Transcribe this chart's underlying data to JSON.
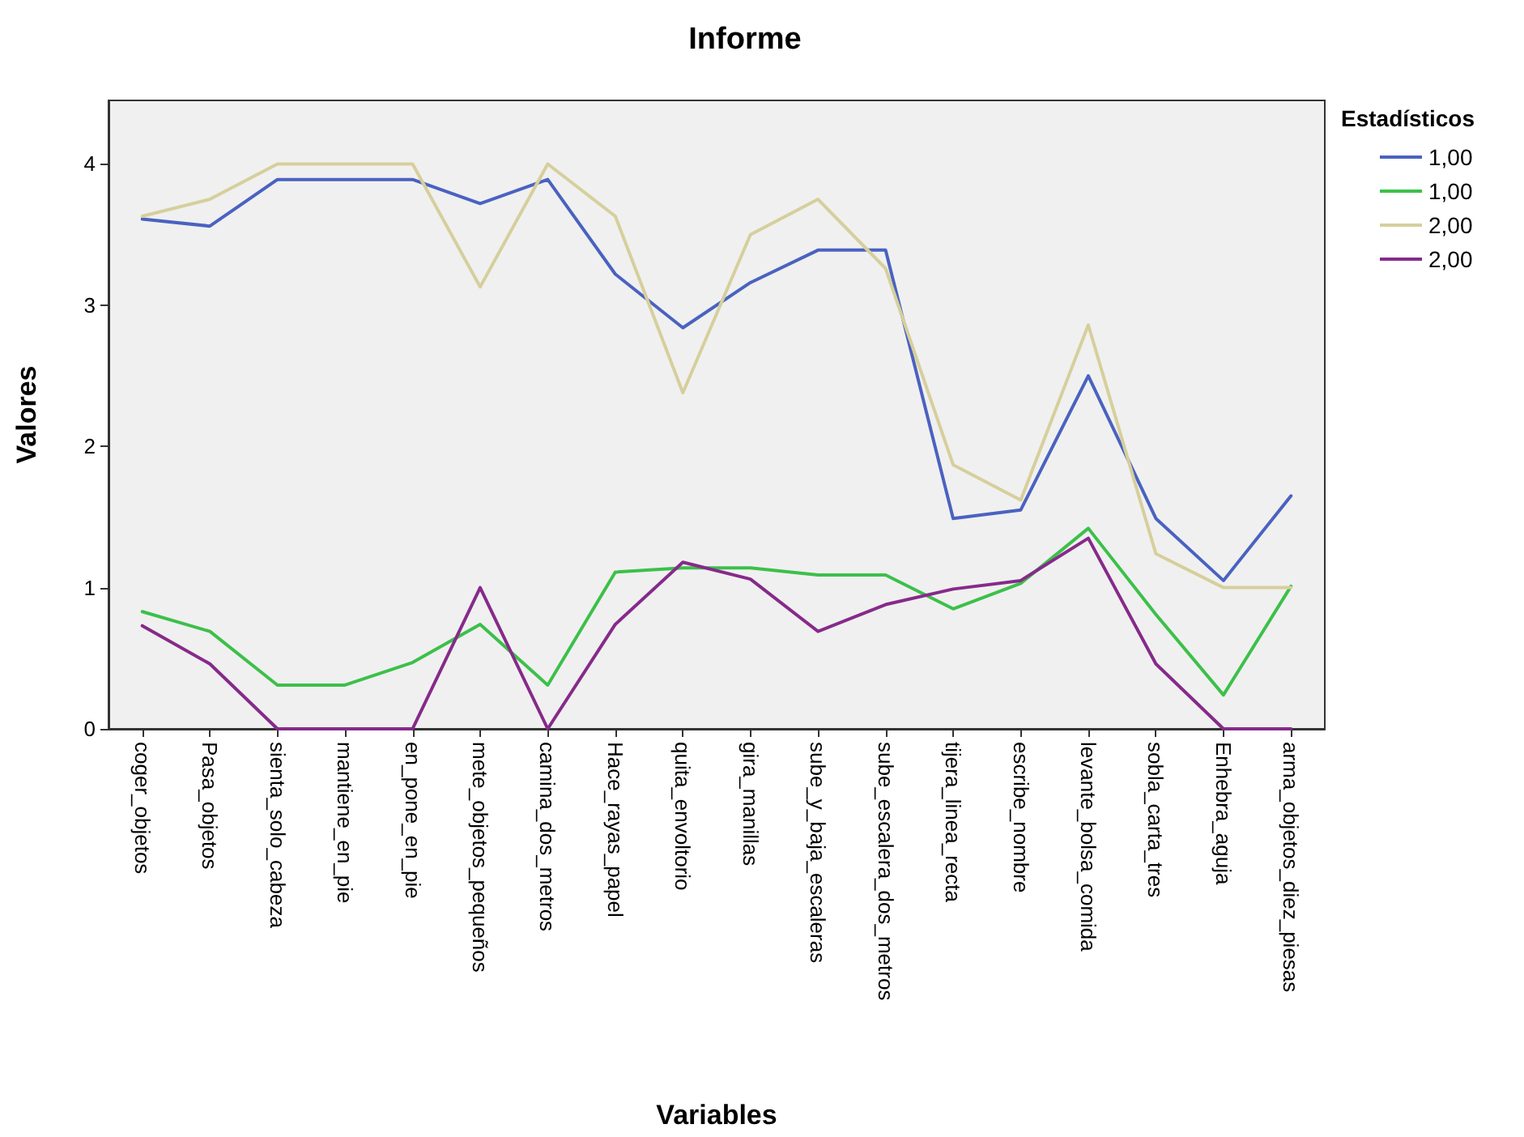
{
  "chart_data": {
    "type": "line",
    "title": "Informe",
    "xlabel": "Variables",
    "ylabel": "Valores",
    "legend_title": "Estadísticos",
    "legend": "top right",
    "grid": false,
    "marker": "none",
    "line_style": "solid",
    "categories": [
      "coger_objetos",
      "Pasa_objetos",
      "sienta_solo_cabeza",
      "mantiene_en_pie",
      "en_pone_en_pie",
      "mete_objetos_pequeños",
      "camina_dos_metros",
      "Hace_rayas_papel",
      "quita_envoltorio",
      "gira_manillas",
      "sube_y_baja_escaleras",
      "sube_escalera_dos_metros",
      "tijera_linea_recta",
      "escribe_nombre",
      "levante_bolsa_comida",
      "sobla_carta_tres",
      "Enhebra_aguja",
      "arma_objetos_diez_piesas"
    ],
    "ylim": [
      0,
      4.45
    ],
    "yticks": [
      0,
      1,
      2,
      3,
      4
    ],
    "series": [
      {
        "name": "1,00",
        "color": "#4a62c0",
        "values": [
          3.61,
          3.56,
          3.89,
          3.89,
          3.89,
          3.72,
          3.89,
          3.22,
          2.84,
          3.16,
          3.39,
          3.39,
          1.49,
          1.55,
          2.5,
          1.49,
          1.05,
          1.65
        ]
      },
      {
        "name": "1,00",
        "color": "#3cc04a",
        "values": [
          0.83,
          0.69,
          0.31,
          0.31,
          0.47,
          0.74,
          0.31,
          1.11,
          1.14,
          1.14,
          1.09,
          1.09,
          0.85,
          1.03,
          1.42,
          0.81,
          0.24,
          1.01
        ]
      },
      {
        "name": "2,00",
        "color": "#d6cf9c",
        "values": [
          3.63,
          3.75,
          4,
          4,
          4,
          3.13,
          4,
          3.63,
          2.38,
          3.5,
          3.75,
          3.26,
          1.87,
          1.62,
          2.86,
          1.24,
          1,
          1
        ]
      },
      {
        "name": "2,00",
        "color": "#862a8a",
        "values": [
          0.73,
          0.46,
          0,
          0,
          0,
          1,
          0,
          0.74,
          1.18,
          1.06,
          0.69,
          0.88,
          0.99,
          1.05,
          1.35,
          0.46,
          0,
          0
        ]
      }
    ]
  }
}
